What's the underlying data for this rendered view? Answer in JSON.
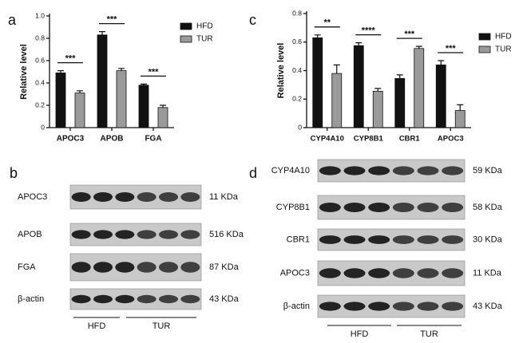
{
  "chart_data": [
    {
      "type": "bar",
      "panel": "a",
      "ylabel": "Relative level",
      "categories": [
        "APOC3",
        "APOB",
        "FGA"
      ],
      "series": [
        {
          "name": "HFD",
          "color": "#111111",
          "values": [
            0.49,
            0.83,
            0.38
          ],
          "errors": [
            0.02,
            0.03,
            0.01
          ]
        },
        {
          "name": "TUR",
          "color": "#9a9a9a",
          "values": [
            0.31,
            0.51,
            0.18
          ],
          "errors": [
            0.02,
            0.02,
            0.02
          ]
        }
      ],
      "significance": [
        "***",
        "***",
        "***"
      ],
      "ylim": [
        0,
        1
      ],
      "yticks": [
        0,
        0.2,
        0.4,
        0.6,
        0.8,
        {
          "value": 1,
          "label": "1.0"
        }
      ],
      "legend": "upper right"
    },
    {
      "type": "bar",
      "panel": "c",
      "ylabel": "Relative level",
      "categories": [
        "CYP4A10",
        "CYP8B1",
        "CBR1",
        "APOC3"
      ],
      "series": [
        {
          "name": "HFD",
          "color": "#111111",
          "values": [
            0.63,
            0.575,
            0.345,
            0.44
          ],
          "errors": [
            0.02,
            0.02,
            0.025,
            0.03
          ]
        },
        {
          "name": "TUR",
          "color": "#9a9a9a",
          "values": [
            0.38,
            0.255,
            0.555,
            0.12
          ],
          "errors": [
            0.06,
            0.02,
            0.015,
            0.04
          ]
        }
      ],
      "significance": [
        "**",
        "****",
        "***",
        "***"
      ],
      "ylim": [
        0,
        0.8
      ],
      "yticks": [
        0,
        0.2,
        0.4,
        0.6,
        0.8
      ],
      "legend": "upper right"
    }
  ],
  "blots": [
    {
      "panel": "b",
      "rows": [
        {
          "label": "APOC3",
          "size": "11 KDa"
        },
        {
          "label": "APOB",
          "size": "516 KDa"
        },
        {
          "label": "FGA",
          "size": "87 KDa"
        },
        {
          "label": "β-actin",
          "size": "43 KDa"
        }
      ],
      "groups": [
        "HFD",
        "TUR"
      ]
    },
    {
      "panel": "d",
      "rows": [
        {
          "label": "CYP4A10",
          "size": "59 KDa"
        },
        {
          "label": "CYP8B1",
          "size": "58 KDa"
        },
        {
          "label": "CBR1",
          "size": "30 KDa"
        },
        {
          "label": "APOC3",
          "size": "11 KDa"
        },
        {
          "label": "β-actin",
          "size": "43 KDa"
        }
      ],
      "groups": [
        "HFD",
        "TUR"
      ]
    }
  ]
}
